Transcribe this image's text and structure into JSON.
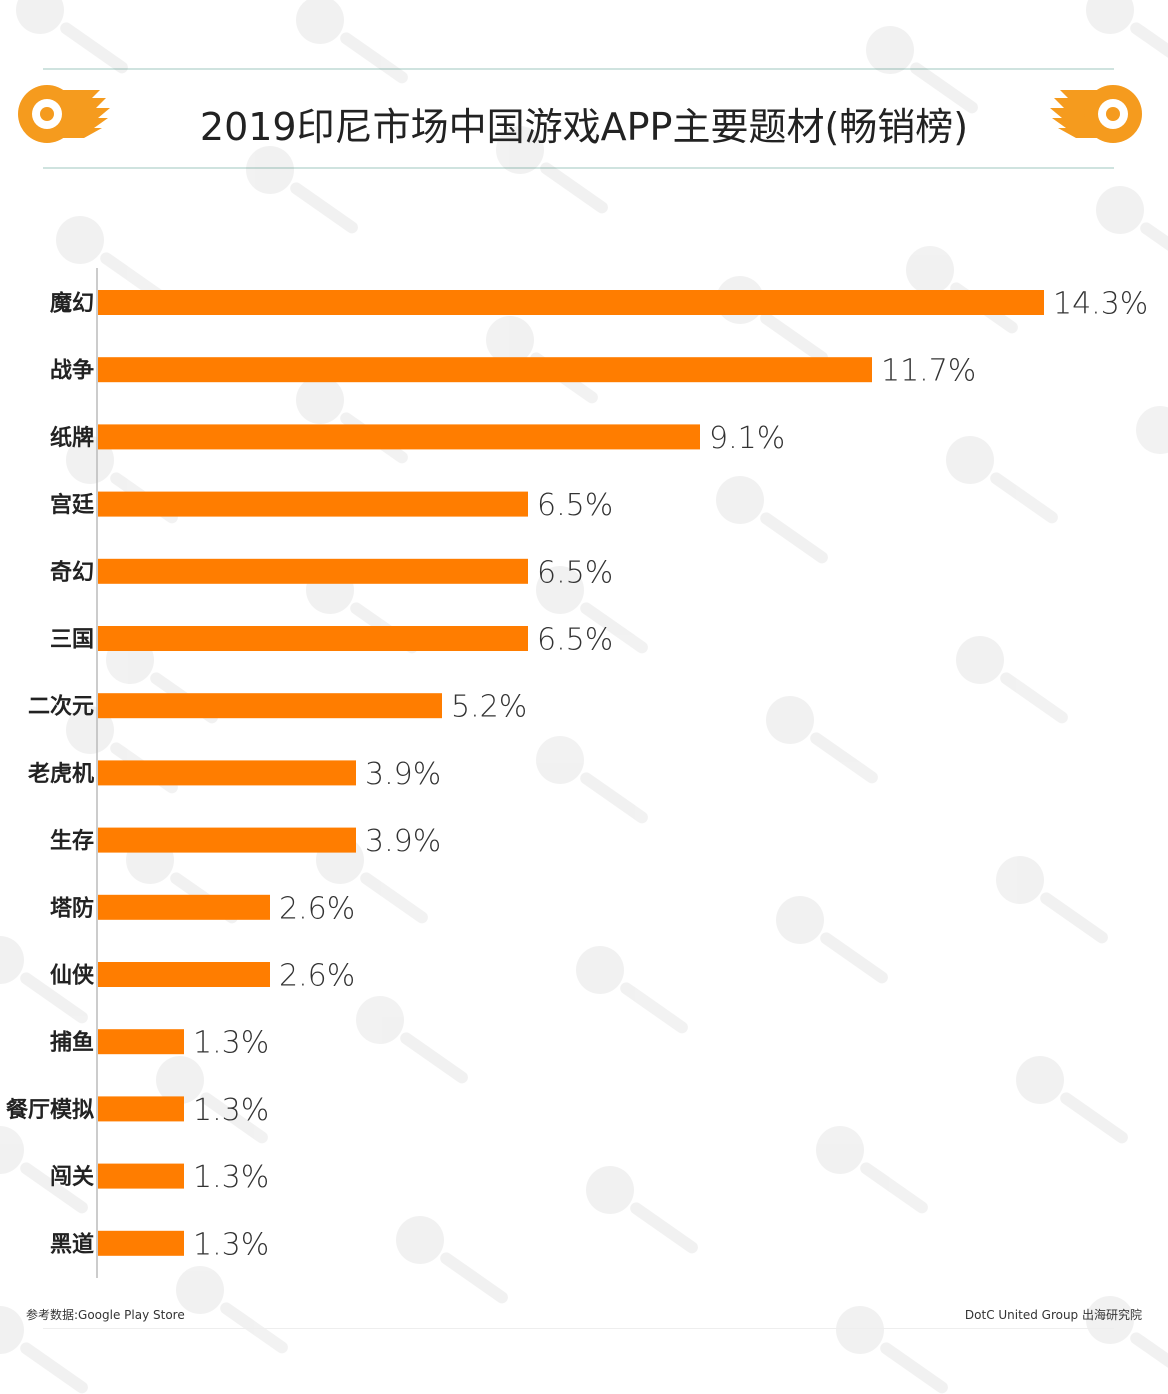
{
  "header": {
    "title": "2019印尼市场中国游戏APP主要题材(畅销榜)"
  },
  "footer": {
    "source": "参考数据:Google Play Store",
    "credit": "DotC United Group 出海研究院"
  },
  "colors": {
    "bar": "#ff7d00",
    "accent": "#f59b1e",
    "rule": "#cfe3df"
  },
  "watermark_icon": "dotc-united-logo",
  "chart_data": {
    "type": "bar",
    "orientation": "horizontal",
    "categories": [
      "魔幻",
      "战争",
      "纸牌",
      "宫廷",
      "奇幻",
      "三国",
      "二次元",
      "老虎机",
      "生存",
      "塔防",
      "仙侠",
      "捕鱼",
      "餐厅模拟",
      "闯关",
      "黑道"
    ],
    "values": [
      14.3,
      11.7,
      9.1,
      6.5,
      6.5,
      6.5,
      5.2,
      3.9,
      3.9,
      2.6,
      2.6,
      1.3,
      1.3,
      1.3,
      1.3
    ],
    "value_labels": [
      "14.3%",
      "11.7%",
      "9.1%",
      "6.5%",
      "6.5%",
      "6.5%",
      "5.2%",
      "3.9%",
      "3.9%",
      "2.6%",
      "2.6%",
      "1.3%",
      "1.3%",
      "1.3%",
      "1.3%"
    ],
    "unit": "%",
    "xlim": [
      0,
      14.3
    ],
    "grid": false,
    "legend": "none"
  }
}
